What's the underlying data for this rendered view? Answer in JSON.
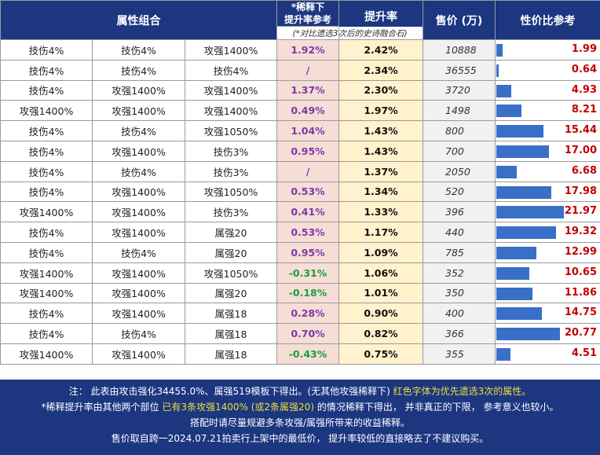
{
  "header": {
    "attrs": "属性组合",
    "dilution_line1": "*稀释下",
    "dilution_line2": "提升率参考",
    "dilution_sub": "(*对比遗选3次后的史诗融合石)",
    "rate": "提升率",
    "price": "售价 (万)",
    "value": "性价比参考"
  },
  "chart_data": {
    "type": "table",
    "columns": [
      "属性组合",
      "属性组合",
      "属性组合",
      "*稀释下提升率参考",
      "提升率",
      "售价 (万)",
      "性价比参考"
    ],
    "rows": [
      {
        "a1": "技伤4%",
        "a1_red": false,
        "a2": "技伤4%",
        "a2_red": false,
        "a3": "攻强1400%",
        "a3_red": true,
        "dil": "1.92%",
        "dil_neg": false,
        "rate": "2.42%",
        "price": "10888",
        "val": "1.99",
        "v": 1.99
      },
      {
        "a1": "技伤4%",
        "a1_red": true,
        "a2": "技伤4%",
        "a2_red": false,
        "a3": "技伤4%",
        "a3_red": false,
        "dil": "/",
        "dil_neg": false,
        "rate": "2.34%",
        "price": "36555",
        "val": "0.64",
        "v": 0.64
      },
      {
        "a1": "技伤4%",
        "a1_red": true,
        "a2": "攻强1400%",
        "a2_red": false,
        "a3": "攻强1400%",
        "a3_red": false,
        "dil": "1.37%",
        "dil_neg": false,
        "rate": "2.30%",
        "price": "3720",
        "val": "4.93",
        "v": 4.93
      },
      {
        "a1": "攻强1400%",
        "a1_red": true,
        "a2": "攻强1400%",
        "a2_red": false,
        "a3": "攻强1400%",
        "a3_red": false,
        "dil": "0.49%",
        "dil_neg": false,
        "rate": "1.97%",
        "price": "1498",
        "val": "8.21",
        "v": 8.21
      },
      {
        "a1": "技伤4%",
        "a1_red": false,
        "a2": "技伤4%",
        "a2_red": false,
        "a3": "攻强1050%",
        "a3_red": true,
        "dil": "1.04%",
        "dil_neg": false,
        "rate": "1.43%",
        "price": "800",
        "val": "15.44",
        "v": 15.44
      },
      {
        "a1": "技伤4%",
        "a1_red": false,
        "a2": "攻强1400%",
        "a2_red": false,
        "a3": "技伤3%",
        "a3_red": true,
        "dil": "0.95%",
        "dil_neg": false,
        "rate": "1.43%",
        "price": "700",
        "val": "17.00",
        "v": 17.0
      },
      {
        "a1": "技伤4%",
        "a1_red": false,
        "a2": "技伤4%",
        "a2_red": false,
        "a3": "技伤3%",
        "a3_red": true,
        "dil": "/",
        "dil_neg": false,
        "rate": "1.37%",
        "price": "2050",
        "val": "6.68",
        "v": 6.68
      },
      {
        "a1": "技伤4%",
        "a1_red": true,
        "a2": "攻强1400%",
        "a2_red": false,
        "a3": "攻强1050%",
        "a3_red": false,
        "dil": "0.53%",
        "dil_neg": false,
        "rate": "1.34%",
        "price": "520",
        "val": "17.98",
        "v": 17.98
      },
      {
        "a1": "攻强1400%",
        "a1_red": false,
        "a2": "攻强1400%",
        "a2_red": false,
        "a3": "技伤3%",
        "a3_red": true,
        "dil": "0.41%",
        "dil_neg": false,
        "rate": "1.33%",
        "price": "396",
        "val": "21.97",
        "v": 21.97
      },
      {
        "a1": "技伤4%",
        "a1_red": false,
        "a2": "攻强1400%",
        "a2_red": true,
        "a3": "属强20",
        "a3_red": false,
        "dil": "0.53%",
        "dil_neg": false,
        "rate": "1.17%",
        "price": "440",
        "val": "19.32",
        "v": 19.32
      },
      {
        "a1": "技伤4%",
        "a1_red": true,
        "a2": "技伤4%",
        "a2_red": false,
        "a3": "属强20",
        "a3_red": false,
        "dil": "0.95%",
        "dil_neg": false,
        "rate": "1.09%",
        "price": "785",
        "val": "12.99",
        "v": 12.99
      },
      {
        "a1": "攻强1400%",
        "a1_red": true,
        "a2": "攻强1400%",
        "a2_red": false,
        "a3": "攻强1050%",
        "a3_red": false,
        "dil": "-0.31%",
        "dil_neg": true,
        "rate": "1.06%",
        "price": "352",
        "val": "10.65",
        "v": 10.65
      },
      {
        "a1": "攻强1400%",
        "a1_red": true,
        "a2": "攻强1400%",
        "a2_red": false,
        "a3": "属强20",
        "a3_red": false,
        "dil": "-0.18%",
        "dil_neg": true,
        "rate": "1.01%",
        "price": "350",
        "val": "11.86",
        "v": 11.86
      },
      {
        "a1": "技伤4%",
        "a1_red": false,
        "a2": "攻强1400%",
        "a2_red": true,
        "a3": "属强18",
        "a3_red": false,
        "dil": "0.28%",
        "dil_neg": false,
        "rate": "0.90%",
        "price": "400",
        "val": "14.75",
        "v": 14.75
      },
      {
        "a1": "技伤4%",
        "a1_red": true,
        "a2": "技伤4%",
        "a2_red": false,
        "a3": "属强18",
        "a3_red": false,
        "dil": "0.70%",
        "dil_neg": false,
        "rate": "0.82%",
        "price": "366",
        "val": "20.77",
        "v": 20.77
      },
      {
        "a1": "攻强1400%",
        "a1_red": true,
        "a2": "攻强1400%",
        "a2_red": false,
        "a3": "属强18",
        "a3_red": false,
        "dil": "-0.43%",
        "dil_neg": true,
        "rate": "0.75%",
        "price": "355",
        "val": "4.51",
        "v": 4.51
      }
    ],
    "value_max": 21.97
  },
  "notes": {
    "line1_a": "注： 此表由攻击强化34455.0%、属强519模板下得出。(无其他攻强稀释下) ",
    "line1_b": "红色字体为优先遗选3次的属性。",
    "line2_a": "*稀释提升率由其他两个部位 ",
    "line2_b": "已有3条攻强1400% (或2条属强20)",
    "line2_c": " 的情况稀释下得出， 并非真正的下限， 参考意义也较小。",
    "line3": "搭配时请尽量规避多条攻强/属强所带来的收益稀释。",
    "line4": "售价取自跨一2024.07.21拍卖行上架中的最低价， 提升率较低的直接略去了不建议购买。"
  },
  "colors": {
    "header_bg": "#1c3680",
    "red": "#d21d1d",
    "purple": "#7b3aa6",
    "green": "#19a03a",
    "bar": "#3a6fc7",
    "highlight": "#f1df3a"
  }
}
